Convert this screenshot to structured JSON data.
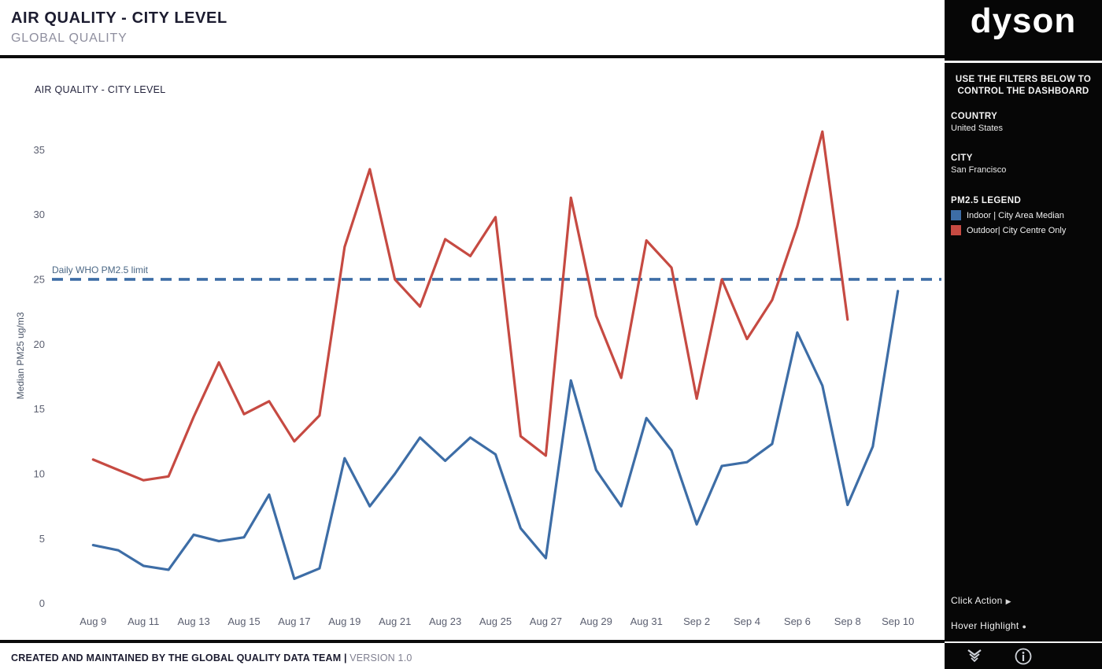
{
  "header": {
    "title": "AIR QUALITY - CITY LEVEL",
    "subtitle": "GLOBAL QUALITY"
  },
  "footer": {
    "main": "CREATED AND MAINTAINED BY THE GLOBAL QUALITY DATA TEAM |",
    "version": "VERSION 1.0"
  },
  "sidebar": {
    "logo": "dyson",
    "instructions": "USE THE FILTERS BELOW TO CONTROL THE DASHBOARD",
    "filters": [
      {
        "label": "COUNTRY",
        "value": "United States"
      },
      {
        "label": "CITY",
        "value": "San Francisco"
      }
    ],
    "legend": {
      "title": "PM2.5 LEGEND",
      "items": [
        {
          "label": "Indoor | City Area Median",
          "color": "#3d6da6"
        },
        {
          "label": "Outdoor| City Centre Only",
          "color": "#c64a42"
        }
      ]
    },
    "click_action": {
      "label": "Click Action",
      "icon": "▶"
    },
    "hover_highlight": {
      "label": "Hover Highlight",
      "icon": "●"
    }
  },
  "chart_data": {
    "type": "line",
    "title": "AIR QUALITY - CITY LEVEL",
    "ylabel": "Median PM25 ug/m3",
    "ylim": [
      0,
      35
    ],
    "yticks": [
      0,
      5,
      10,
      15,
      20,
      25,
      30,
      35
    ],
    "grid": false,
    "x": [
      "Aug 9",
      "Aug 10",
      "Aug 11",
      "Aug 12",
      "Aug 13",
      "Aug 14",
      "Aug 15",
      "Aug 16",
      "Aug 17",
      "Aug 18",
      "Aug 19",
      "Aug 20",
      "Aug 21",
      "Aug 22",
      "Aug 23",
      "Aug 24",
      "Aug 25",
      "Aug 26",
      "Aug 27",
      "Aug 28",
      "Aug 29",
      "Aug 30",
      "Aug 31",
      "Sep 1",
      "Sep 2",
      "Sep 3",
      "Sep 4",
      "Sep 5",
      "Sep 6",
      "Sep 7",
      "Sep 8",
      "Sep 9",
      "Sep 10"
    ],
    "xtick_labels": [
      "Aug 9",
      "Aug 11",
      "Aug 13",
      "Aug 15",
      "Aug 17",
      "Aug 19",
      "Aug 21",
      "Aug 23",
      "Aug 25",
      "Aug 27",
      "Aug 29",
      "Aug 31",
      "Sep 2",
      "Sep 4",
      "Sep 6",
      "Sep 8",
      "Sep 10"
    ],
    "series": [
      {
        "name": "Indoor | City Area Median",
        "color": "#3d6da6",
        "values": [
          4.5,
          4.1,
          2.9,
          2.6,
          5.3,
          4.8,
          5.1,
          8.4,
          1.9,
          2.7,
          11.2,
          7.5,
          10.0,
          12.8,
          11.0,
          12.8,
          11.5,
          5.8,
          3.5,
          17.2,
          10.3,
          7.5,
          14.3,
          11.8,
          6.1,
          10.6,
          10.9,
          12.3,
          20.9,
          16.8,
          7.6,
          12.1,
          24.1
        ]
      },
      {
        "name": "Outdoor| City Centre Only",
        "color": "#c64a42",
        "values": [
          11.1,
          10.3,
          9.5,
          9.8,
          14.4,
          18.6,
          14.6,
          15.6,
          12.5,
          14.5,
          27.5,
          33.5,
          25.0,
          22.9,
          28.1,
          26.8,
          29.8,
          12.9,
          11.4,
          31.3,
          22.2,
          17.4,
          28.0,
          25.9,
          15.8,
          25.0,
          20.4,
          23.4,
          29.1,
          36.4,
          21.9,
          null,
          null
        ]
      }
    ],
    "reference_line": {
      "label": "Daily WHO PM2.5 limit",
      "value": 25,
      "color": "#3d6da6",
      "style": "dashed"
    }
  }
}
